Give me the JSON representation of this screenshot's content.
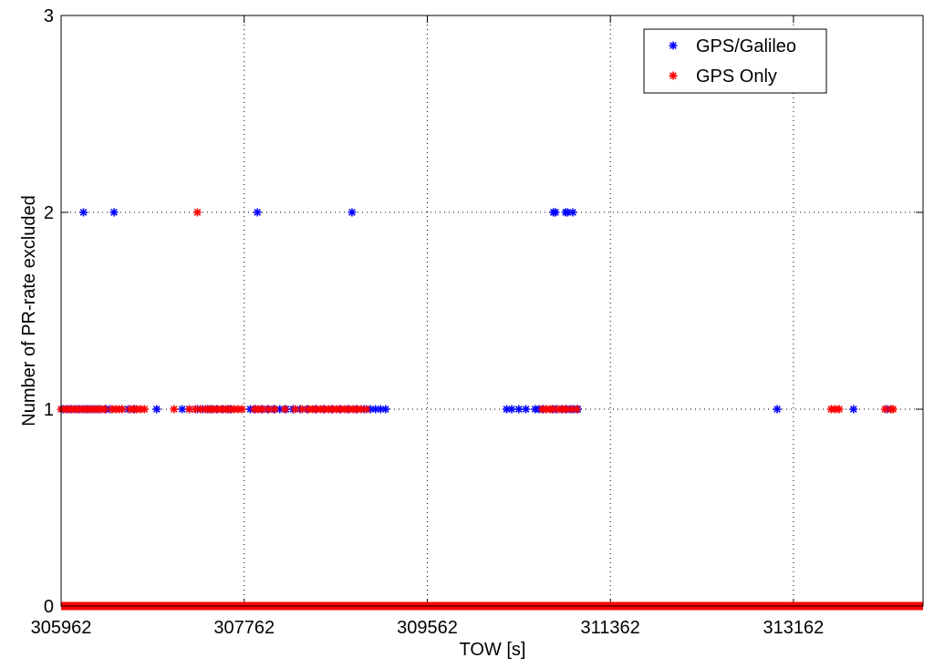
{
  "chart_data": {
    "type": "scatter",
    "xlabel": "TOW [s]",
    "ylabel": "Number of PR-rate excluded",
    "xlim": [
      305962,
      314436
    ],
    "ylim": [
      0,
      3
    ],
    "x_ticks": [
      305962,
      307762,
      309562,
      311362,
      313162
    ],
    "x_tick_labels": [
      "305962",
      "307762",
      "309562",
      "311362",
      "313162"
    ],
    "y_ticks": [
      0,
      1,
      2,
      3
    ],
    "y_tick_labels": [
      "0",
      "1",
      "2",
      "3"
    ],
    "grid": true,
    "marker": "*",
    "legend": {
      "placement": "top-right"
    },
    "series": [
      {
        "name": "GPS/Galileo",
        "color": "#0000ff",
        "points": [
          [
            306182,
            2
          ],
          [
            306482,
            2
          ],
          [
            307892,
            2
          ],
          [
            308822,
            2
          ],
          [
            310802,
            2
          ],
          [
            310822,
            2
          ],
          [
            310922,
            2
          ],
          [
            310942,
            2
          ],
          [
            310992,
            2
          ],
          [
            305982,
            1
          ],
          [
            306022,
            1
          ],
          [
            306062,
            1
          ],
          [
            306102,
            1
          ],
          [
            306142,
            1
          ],
          [
            306182,
            1
          ],
          [
            306222,
            1
          ],
          [
            306262,
            1
          ],
          [
            306302,
            1
          ],
          [
            306342,
            1
          ],
          [
            306402,
            1
          ],
          [
            306442,
            1
          ],
          [
            306502,
            1
          ],
          [
            306562,
            1
          ],
          [
            306622,
            1
          ],
          [
            306682,
            1
          ],
          [
            306902,
            1
          ],
          [
            307152,
            1
          ],
          [
            307222,
            1
          ],
          [
            307302,
            1
          ],
          [
            307352,
            1
          ],
          [
            307402,
            1
          ],
          [
            307442,
            1
          ],
          [
            307492,
            1
          ],
          [
            307552,
            1
          ],
          [
            307602,
            1
          ],
          [
            307632,
            1
          ],
          [
            307822,
            1
          ],
          [
            307872,
            1
          ],
          [
            307932,
            1
          ],
          [
            307992,
            1
          ],
          [
            308052,
            1
          ],
          [
            308112,
            1
          ],
          [
            308172,
            1
          ],
          [
            308242,
            1
          ],
          [
            308312,
            1
          ],
          [
            308382,
            1
          ],
          [
            308462,
            1
          ],
          [
            308542,
            1
          ],
          [
            308622,
            1
          ],
          [
            308702,
            1
          ],
          [
            308782,
            1
          ],
          [
            308862,
            1
          ],
          [
            308942,
            1
          ],
          [
            309002,
            1
          ],
          [
            309052,
            1
          ],
          [
            309102,
            1
          ],
          [
            309152,
            1
          ],
          [
            310342,
            1
          ],
          [
            310392,
            1
          ],
          [
            310462,
            1
          ],
          [
            310532,
            1
          ],
          [
            310622,
            1
          ],
          [
            310662,
            1
          ],
          [
            310702,
            1
          ],
          [
            310792,
            1
          ],
          [
            310832,
            1
          ],
          [
            310882,
            1
          ],
          [
            310922,
            1
          ],
          [
            310962,
            1
          ],
          [
            311002,
            1
          ],
          [
            311042,
            1
          ],
          [
            313002,
            1
          ],
          [
            313752,
            1
          ],
          [
            314082,
            1
          ]
        ]
      },
      {
        "name": "GPS Only",
        "color": "#ff0000",
        "points": [
          [
            307302,
            2
          ],
          [
            305962,
            1
          ],
          [
            306002,
            1
          ],
          [
            306042,
            1
          ],
          [
            306082,
            1
          ],
          [
            306122,
            1
          ],
          [
            306162,
            1
          ],
          [
            306202,
            1
          ],
          [
            306242,
            1
          ],
          [
            306282,
            1
          ],
          [
            306322,
            1
          ],
          [
            306362,
            1
          ],
          [
            306392,
            1
          ],
          [
            306462,
            1
          ],
          [
            306502,
            1
          ],
          [
            306532,
            1
          ],
          [
            306562,
            1
          ],
          [
            306642,
            1
          ],
          [
            306672,
            1
          ],
          [
            306702,
            1
          ],
          [
            306742,
            1
          ],
          [
            306782,
            1
          ],
          [
            307072,
            1
          ],
          [
            307222,
            1
          ],
          [
            307282,
            1
          ],
          [
            307332,
            1
          ],
          [
            307382,
            1
          ],
          [
            307422,
            1
          ],
          [
            307462,
            1
          ],
          [
            307502,
            1
          ],
          [
            307542,
            1
          ],
          [
            307582,
            1
          ],
          [
            307622,
            1
          ],
          [
            307662,
            1
          ],
          [
            307702,
            1
          ],
          [
            307742,
            1
          ],
          [
            307862,
            1
          ],
          [
            307902,
            1
          ],
          [
            307942,
            1
          ],
          [
            308002,
            1
          ],
          [
            308062,
            1
          ],
          [
            308162,
            1
          ],
          [
            308262,
            1
          ],
          [
            308332,
            1
          ],
          [
            308392,
            1
          ],
          [
            308432,
            1
          ],
          [
            308472,
            1
          ],
          [
            308512,
            1
          ],
          [
            308552,
            1
          ],
          [
            308592,
            1
          ],
          [
            308632,
            1
          ],
          [
            308672,
            1
          ],
          [
            308712,
            1
          ],
          [
            308752,
            1
          ],
          [
            308792,
            1
          ],
          [
            308832,
            1
          ],
          [
            308872,
            1
          ],
          [
            308912,
            1
          ],
          [
            308962,
            1
          ],
          [
            310692,
            1
          ],
          [
            310732,
            1
          ],
          [
            310772,
            1
          ],
          [
            310802,
            1
          ],
          [
            310852,
            1
          ],
          [
            310892,
            1
          ],
          [
            310932,
            1
          ],
          [
            310982,
            1
          ],
          [
            311032,
            1
          ],
          [
            313532,
            1
          ],
          [
            313572,
            1
          ],
          [
            313612,
            1
          ],
          [
            314062,
            1
          ],
          [
            314122,
            1
          ],
          [
            314142,
            1
          ]
        ],
        "zero_baseline": {
          "x_range": [
            305962,
            314436
          ],
          "y": 0
        }
      }
    ]
  }
}
